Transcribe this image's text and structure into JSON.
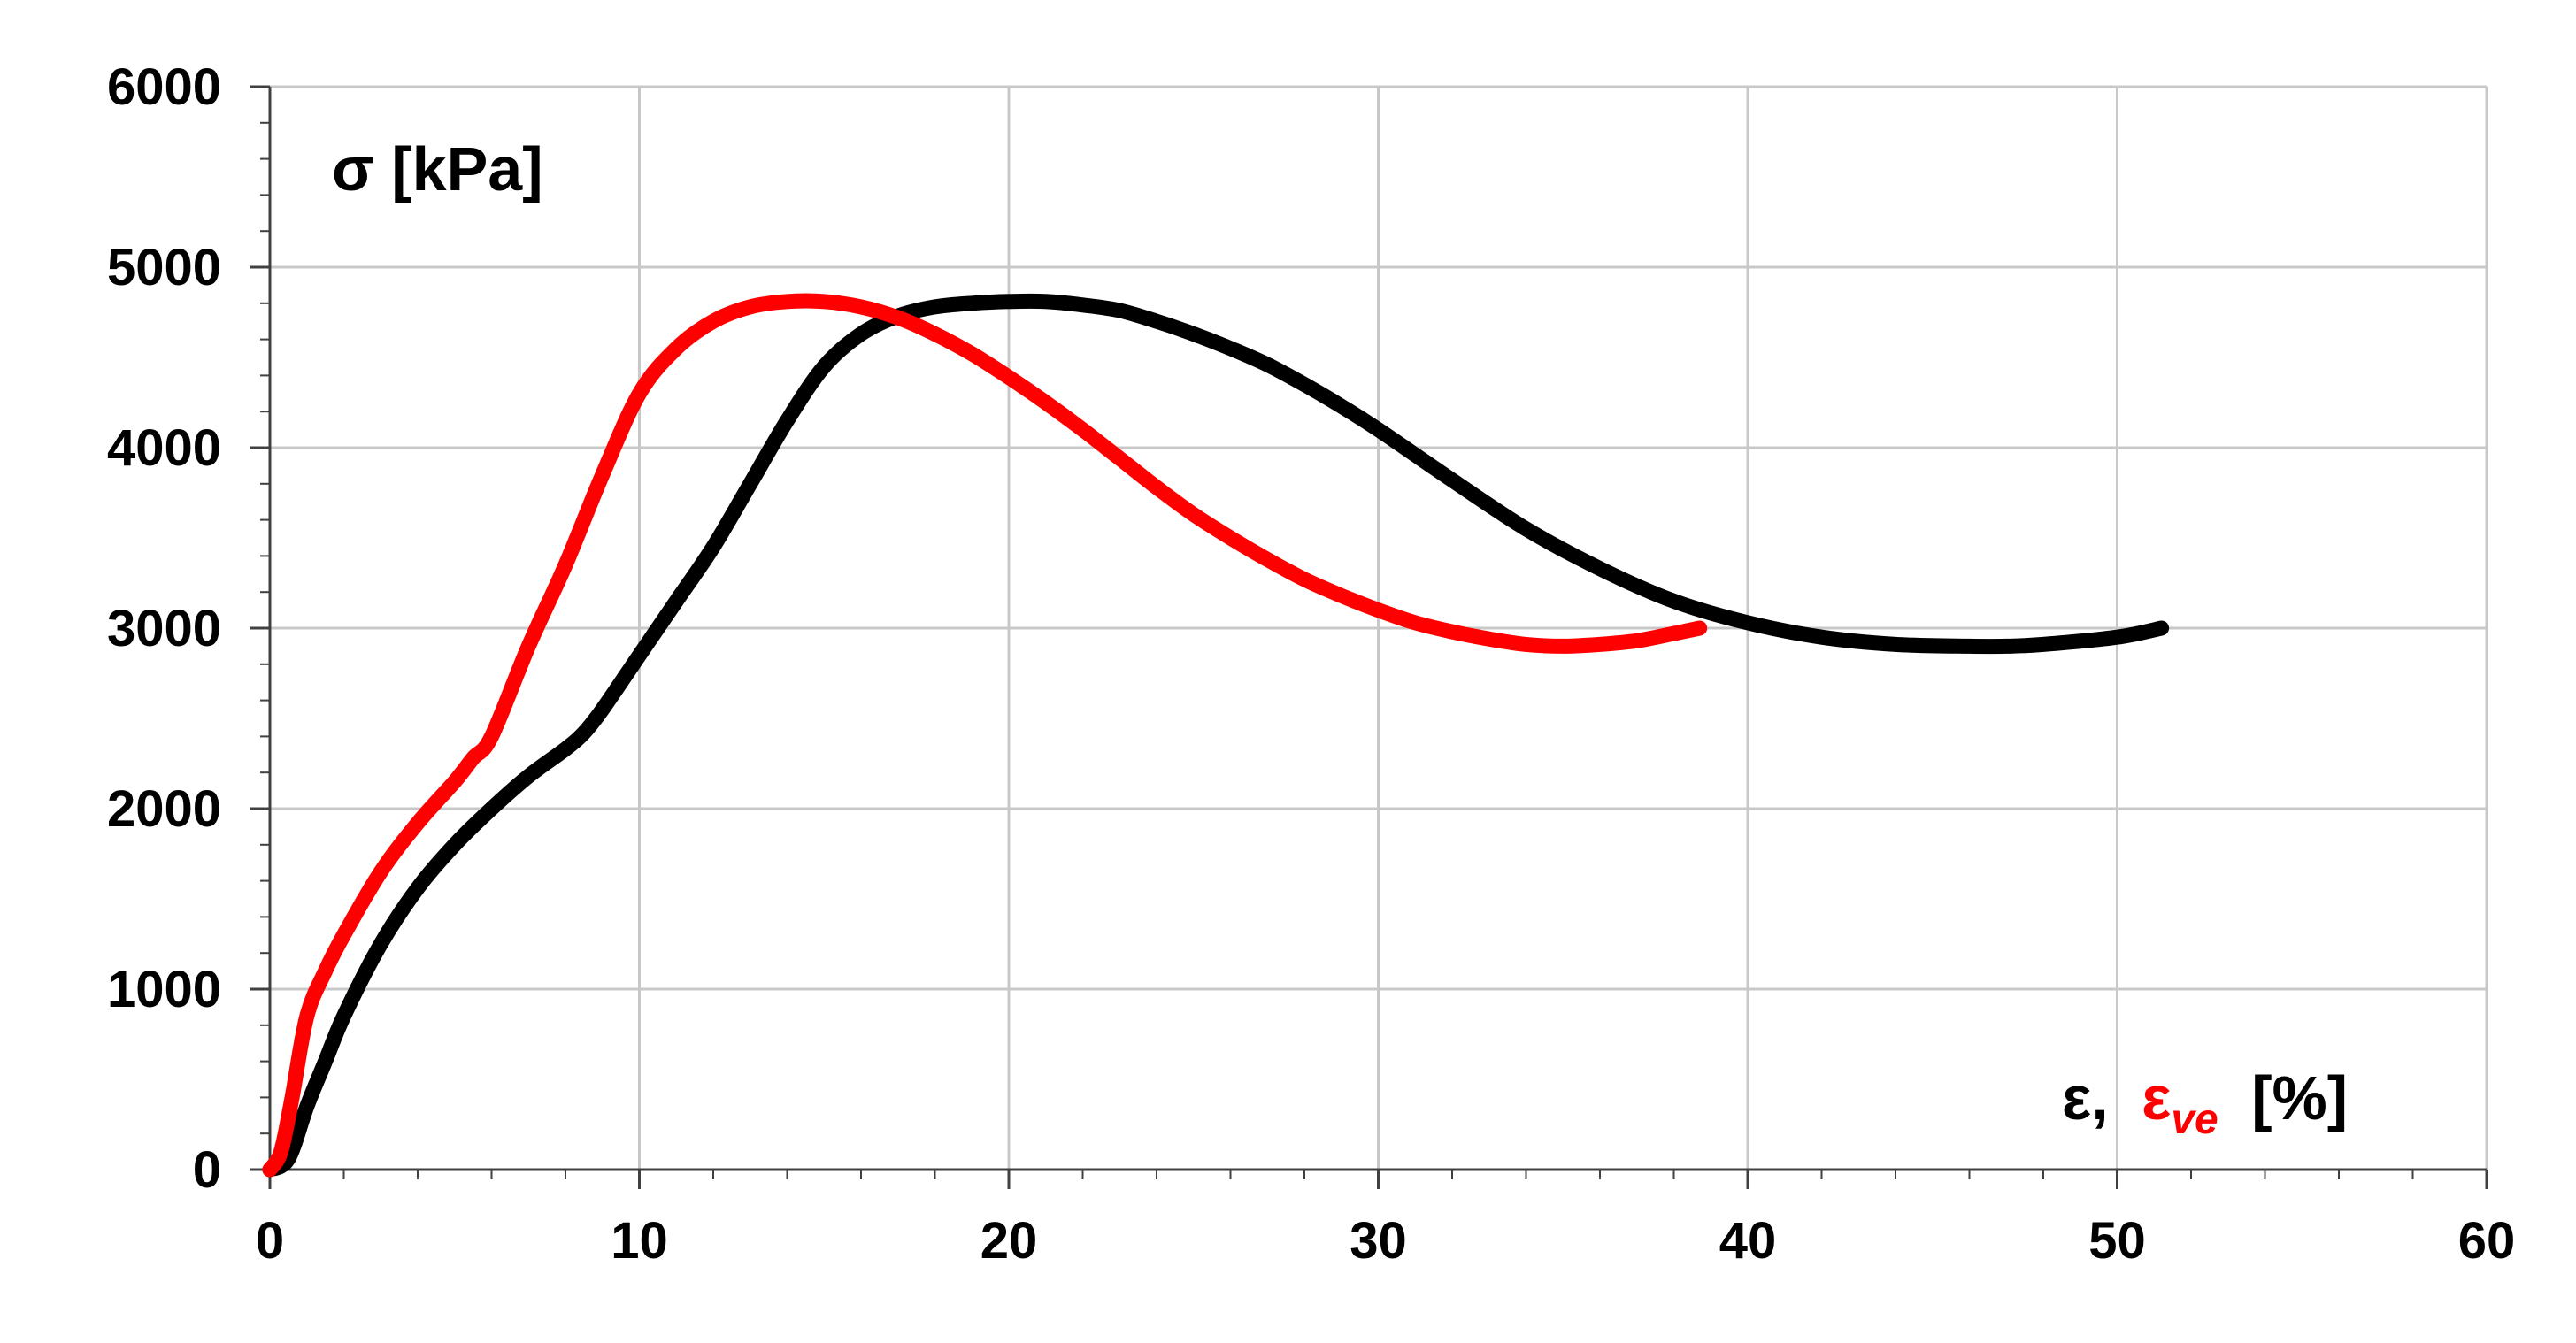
{
  "chart_data": {
    "type": "line",
    "ylabel": "σ [kPa]",
    "xlabel_parts": {
      "a": "ε,",
      "b_main": "ε",
      "b_sub": "ve",
      "c": "[%]"
    },
    "xlim": [
      0,
      60
    ],
    "ylim": [
      0,
      6000
    ],
    "xticks": [
      "0",
      "10",
      "20",
      "30",
      "40",
      "50",
      "60"
    ],
    "yticks": [
      "0",
      "1000",
      "2000",
      "3000",
      "4000",
      "5000",
      "6000"
    ],
    "grid": true,
    "colors": {
      "black": "#000000",
      "red": "#ff0000",
      "grid": "#c8c8c8"
    },
    "series": [
      {
        "color": "#000000",
        "x": [
          0,
          0.5,
          1,
          1.5,
          2,
          3,
          4,
          5,
          6,
          7,
          8,
          8.5,
          9,
          10,
          11,
          12,
          13,
          14,
          15,
          16,
          17,
          18,
          19,
          20,
          21,
          22,
          23,
          24,
          25,
          26,
          27,
          28,
          29,
          30,
          32,
          34,
          36,
          38,
          40,
          42,
          44,
          46,
          47,
          48,
          50,
          51.2
        ],
        "values": [
          0,
          60,
          350,
          600,
          850,
          1250,
          1560,
          1800,
          2000,
          2180,
          2330,
          2420,
          2550,
          2850,
          3150,
          3450,
          3800,
          4150,
          4450,
          4630,
          4730,
          4780,
          4800,
          4810,
          4810,
          4790,
          4760,
          4700,
          4630,
          4550,
          4460,
          4350,
          4230,
          4100,
          3820,
          3550,
          3330,
          3150,
          3030,
          2950,
          2910,
          2900,
          2900,
          2910,
          2950,
          3000
        ]
      },
      {
        "color": "#ff0000",
        "x": [
          0,
          0.3,
          0.6,
          1,
          1.5,
          2,
          3,
          4,
          5,
          5.5,
          6,
          7,
          8,
          9,
          10,
          11,
          12,
          13,
          14,
          15,
          16,
          17,
          18,
          19,
          20,
          21,
          22,
          23,
          24,
          25,
          26,
          27,
          28,
          29,
          30,
          31,
          32,
          33,
          34,
          35,
          36,
          37,
          38,
          38.7
        ],
        "values": [
          0,
          100,
          400,
          850,
          1100,
          1300,
          1650,
          1920,
          2150,
          2280,
          2400,
          2900,
          3350,
          3850,
          4300,
          4550,
          4700,
          4780,
          4810,
          4810,
          4780,
          4720,
          4630,
          4520,
          4390,
          4250,
          4100,
          3940,
          3780,
          3630,
          3500,
          3380,
          3270,
          3180,
          3100,
          3030,
          2980,
          2940,
          2910,
          2900,
          2910,
          2930,
          2970,
          3000
        ]
      }
    ]
  }
}
